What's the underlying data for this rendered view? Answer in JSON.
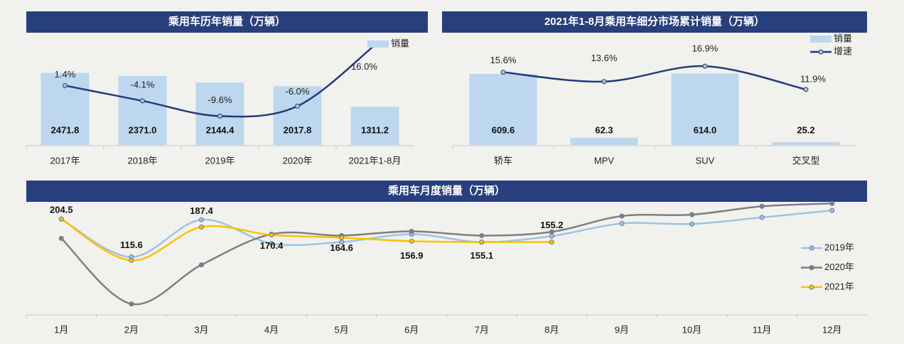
{
  "chart_data": [
    {
      "type": "combo",
      "title": "乘用车历年销量（万辆）",
      "categories": [
        "2017年",
        "2018年",
        "2019年",
        "2020年",
        "2021年1-8月"
      ],
      "series": [
        {
          "name": "销量",
          "type": "bar",
          "color": "#bdd7ee",
          "values": [
            2471.8,
            2371.0,
            2144.4,
            2017.8,
            1311.2
          ],
          "value_labels": [
            "2471.8",
            "2371.0",
            "2144.4",
            "2017.8",
            "1311.2"
          ]
        },
        {
          "type": "line",
          "axis": "y2",
          "color": "#243a78",
          "values": [
            1.4,
            -4.1,
            -9.6,
            -6.0,
            16.0
          ],
          "value_labels": [
            "1.4%",
            "-4.1%",
            "-9.6%",
            "-6.0%",
            "16.0%"
          ]
        }
      ],
      "ylim": [
        0,
        4000
      ],
      "y2lim": [
        -20,
        22
      ],
      "legend": "top-right"
    },
    {
      "type": "combo",
      "title": "2021年1-8月乘用车细分市场累计销量（万辆）",
      "categories": [
        "轿车",
        "MPV",
        "SUV",
        "交叉型"
      ],
      "series": [
        {
          "name": "销量",
          "type": "bar",
          "color": "#bdd7ee",
          "values": [
            609.6,
            62.3,
            614.0,
            25.2
          ],
          "value_labels": [
            "609.6",
            "62.3",
            "614.0",
            "25.2"
          ]
        },
        {
          "name": "增速",
          "type": "line",
          "axis": "y2",
          "color": "#243a78",
          "values": [
            15.6,
            13.6,
            16.9,
            11.9
          ],
          "value_labels": [
            "15.6%",
            "13.6%",
            "16.9%",
            "11.9%"
          ]
        }
      ],
      "ylim": [
        0,
        1000
      ],
      "y2lim": [
        0,
        25
      ],
      "legend": "top-right"
    },
    {
      "type": "line",
      "title": "乘用车月度销量（万辆）",
      "categories": [
        "1月",
        "2月",
        "3月",
        "4月",
        "5月",
        "6月",
        "7月",
        "8月",
        "9月",
        "10月",
        "11月",
        "12月"
      ],
      "series": [
        {
          "name": "2019年",
          "type": "line",
          "color": "#9dc3e6",
          "values": [
            204.5,
            123,
            203,
            152,
            155,
            172,
            155,
            168,
            195,
            194,
            208,
            223
          ]
        },
        {
          "name": "2020年",
          "type": "line",
          "color": "#7f7f7f",
          "values": [
            163,
            22,
            106,
            172,
            169,
            178,
            169,
            177,
            211,
            214,
            232,
            238
          ]
        },
        {
          "name": "2021年",
          "type": "line",
          "color": "#ffc000",
          "values": [
            204.5,
            115.6,
            187.4,
            170.4,
            164.6,
            156.9,
            155.1,
            155.2,
            null,
            null,
            null,
            null
          ],
          "show_labels": true
        }
      ],
      "ylim": [
        0,
        240
      ],
      "legend": "right"
    }
  ]
}
